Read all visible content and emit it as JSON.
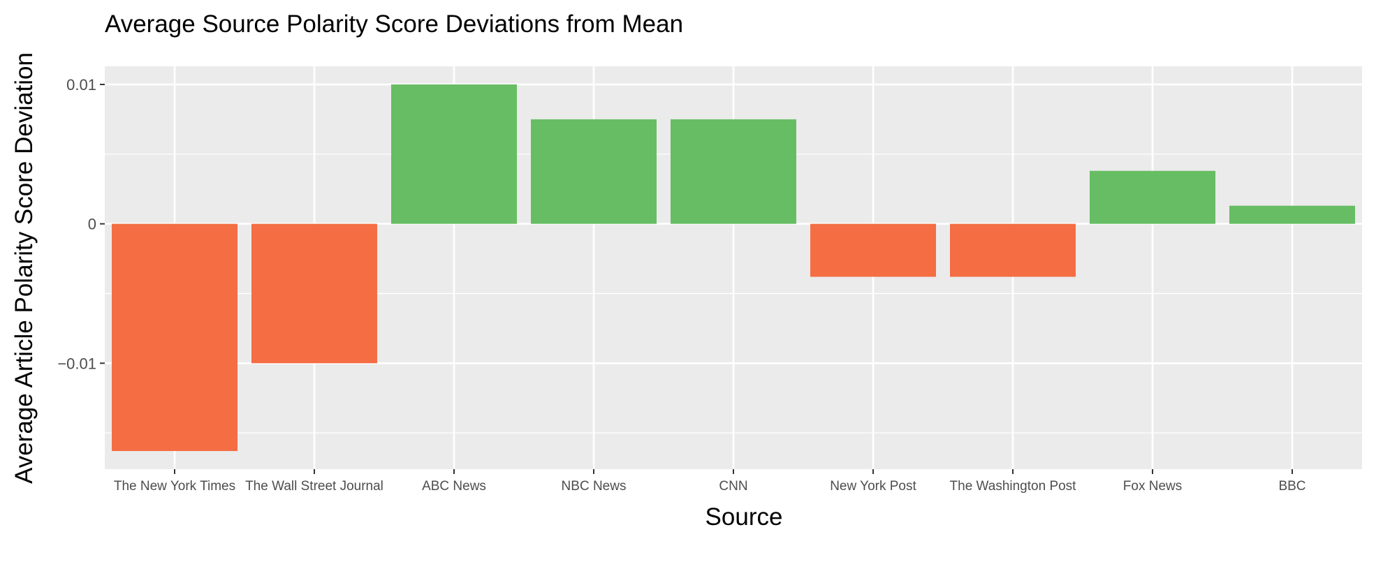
{
  "chart_data": {
    "type": "bar",
    "title": "Average Source Polarity Score Deviations from Mean",
    "xlabel": "Source",
    "ylabel": "Average Article Polarity Score Deviation",
    "categories": [
      "The New York Times",
      "The Wall Street Journal",
      "ABC News",
      "NBC News",
      "CNN",
      "New York Post",
      "The Washington Post",
      "Fox News",
      "BBC"
    ],
    "values": [
      -0.0163,
      -0.01,
      0.01,
      0.0075,
      0.0075,
      -0.0038,
      -0.0038,
      0.0038,
      0.0013
    ],
    "ylim": [
      -0.0176,
      0.0113
    ],
    "y_ticks": [
      {
        "value": 0.01,
        "label": "0.01"
      },
      {
        "value": 0,
        "label": "0"
      },
      {
        "value": -0.01,
        "label": "−0.01"
      }
    ],
    "y_minor_gridlines": [
      0.005,
      -0.005,
      -0.015
    ],
    "grid": true,
    "legend": "none",
    "colors": {
      "positive": "#67bd63",
      "negative": "#f46d43",
      "panel": "#ebebeb",
      "grid": "#ffffff",
      "tick": "#333333"
    }
  }
}
